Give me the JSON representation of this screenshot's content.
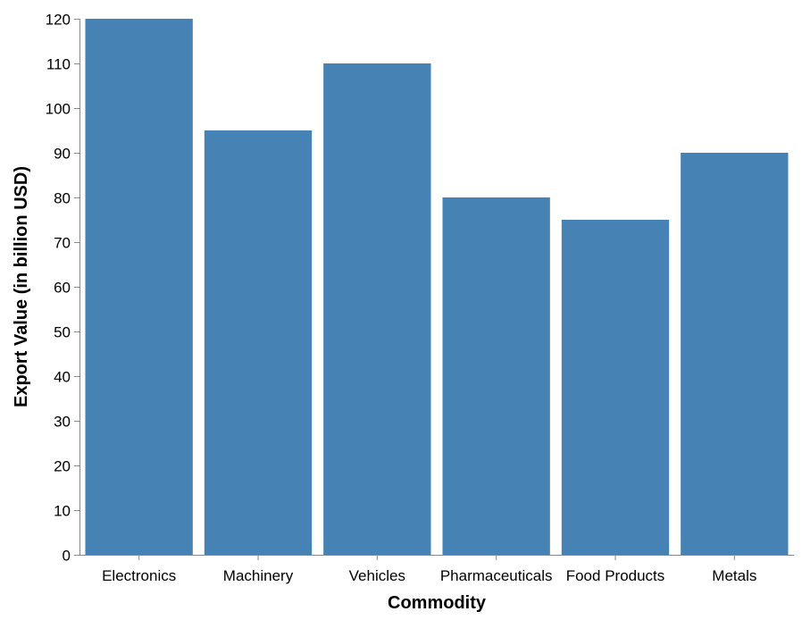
{
  "chart_data": {
    "type": "bar",
    "categories": [
      "Electronics",
      "Machinery",
      "Vehicles",
      "Pharmaceuticals",
      "Food Products",
      "Metals"
    ],
    "values": [
      120,
      95,
      110,
      80,
      75,
      90
    ],
    "xlabel": "Commodity",
    "ylabel": "Export Value (in billion USD)",
    "ylim": [
      0,
      120
    ],
    "yticks": [
      0,
      10,
      20,
      30,
      40,
      50,
      60,
      70,
      80,
      90,
      100,
      110,
      120
    ],
    "grid": false,
    "legend": "none",
    "colors": {
      "bar": "#4682b4",
      "axis": "#888888",
      "text": "#000000"
    }
  }
}
